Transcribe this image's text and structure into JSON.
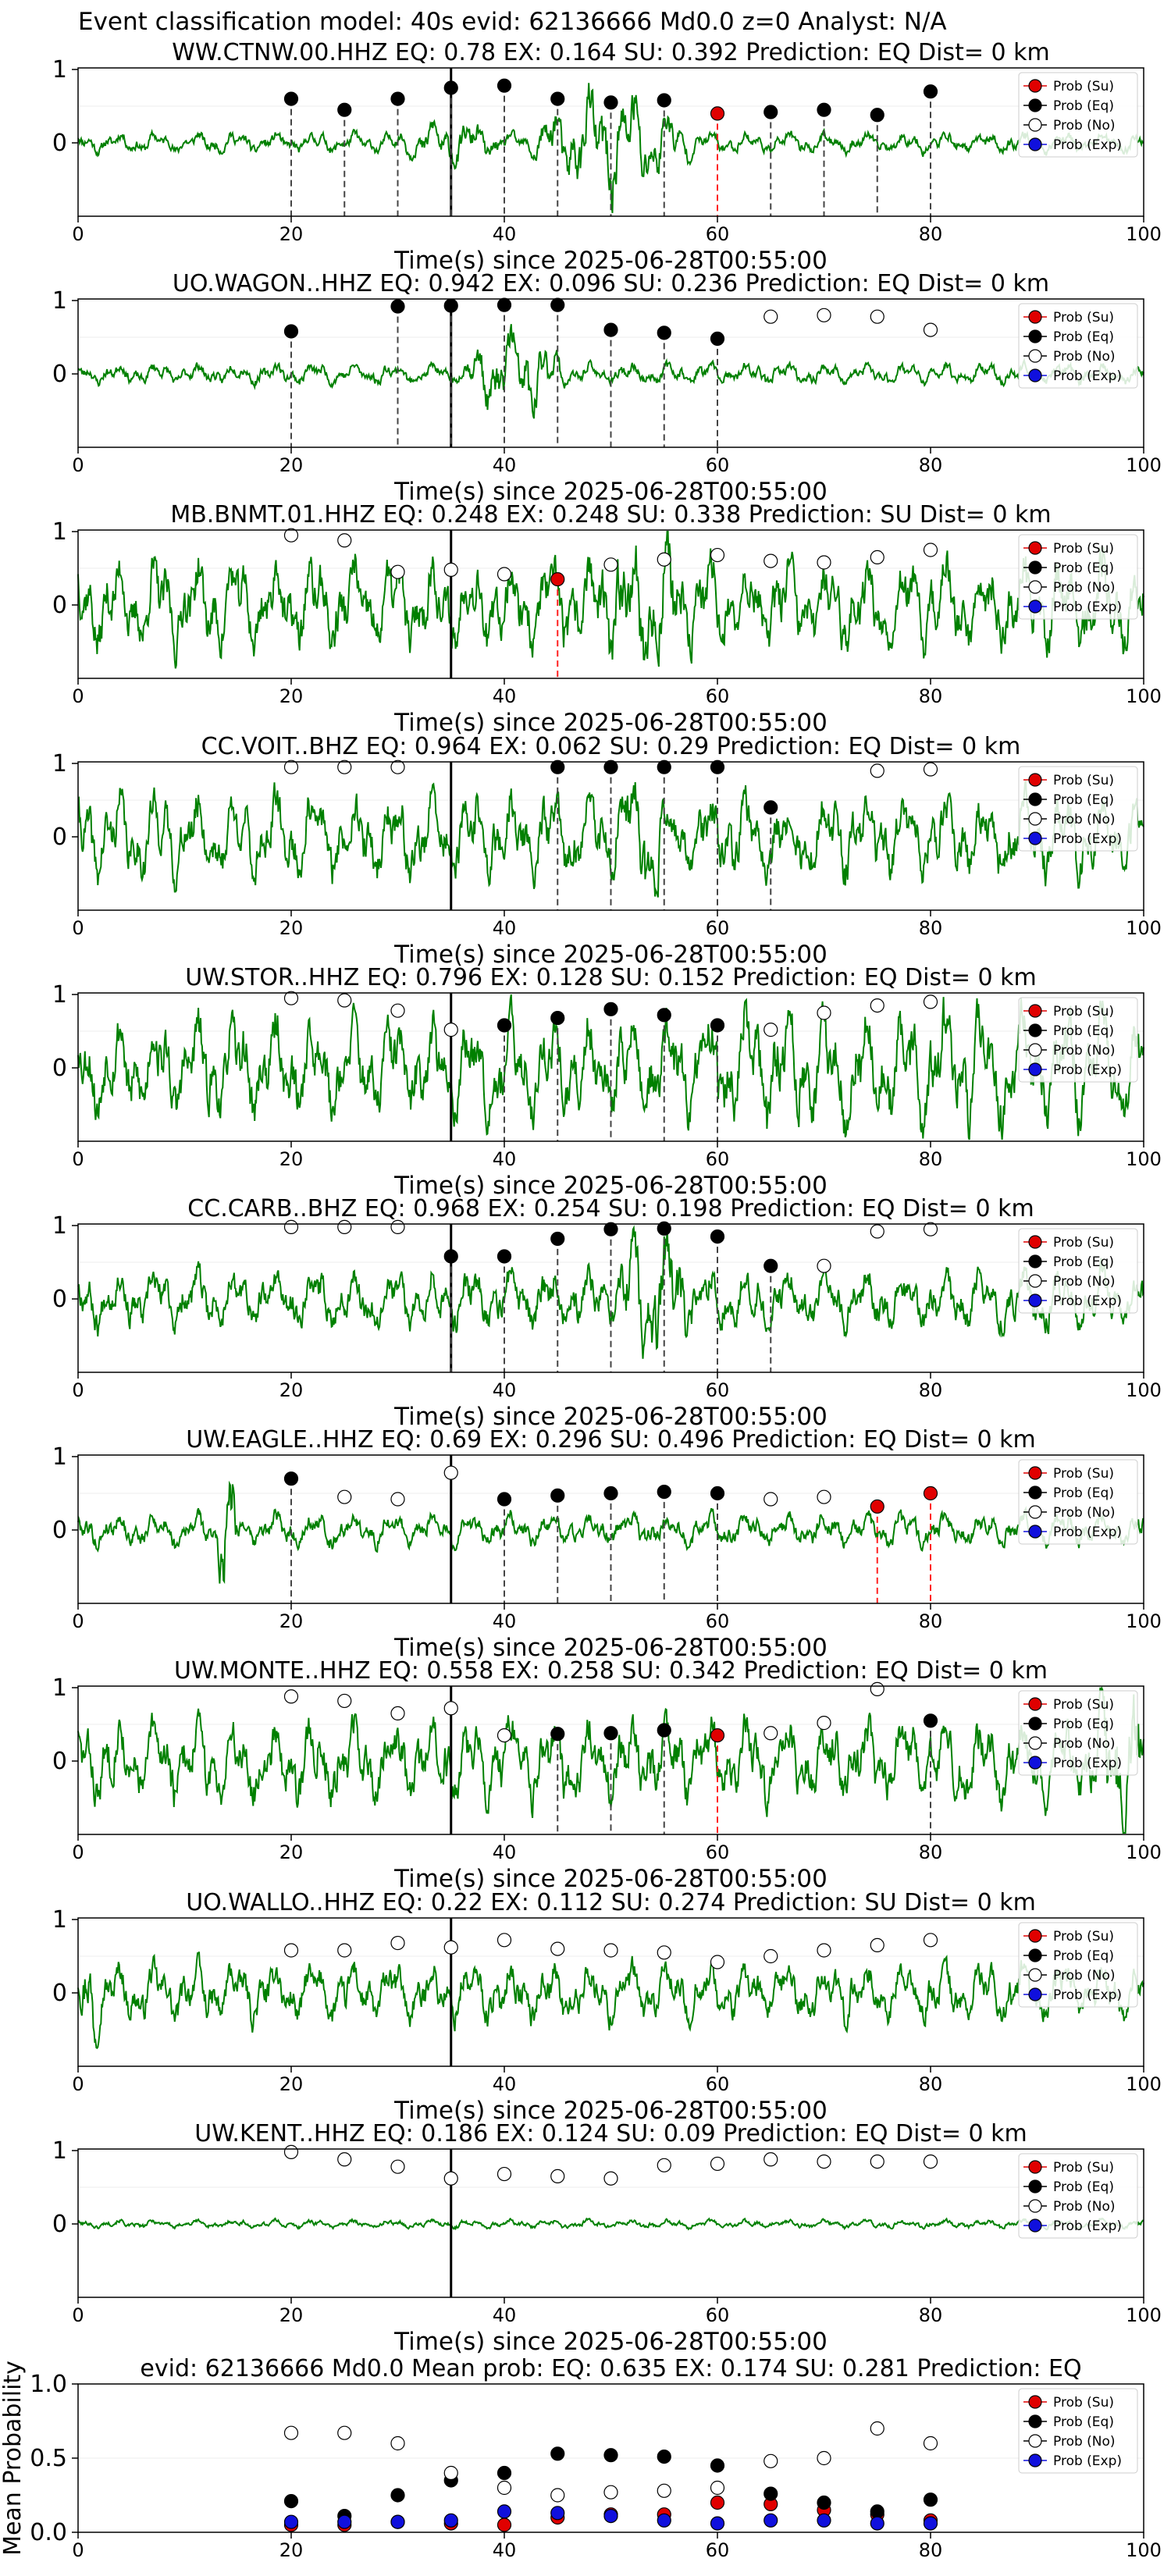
{
  "figure_title": "Event classification model: 40s evid: 62136666 Md0.0 z=0 Analyst: N/A",
  "legend_labels": [
    "Prob (Su)",
    "Prob (Eq)",
    "Prob (No)",
    "Prob (Exp)"
  ],
  "colors": {
    "su": "#e00000",
    "eq": "#000000",
    "no": "#ffffff",
    "exp": "#1010dd",
    "waveform": "#008000",
    "dashed": "#444444",
    "red_line": "#ff2020"
  },
  "xlabel": "Time(s) since 2025-06-28T00:55:00",
  "x_ticks": [
    "0",
    "20",
    "40",
    "60",
    "80",
    "100"
  ],
  "y_ticks_trace": [
    "1",
    "0"
  ],
  "y_ticks_mean": [
    "1.0",
    "0.5",
    "0.0"
  ],
  "chart_data": [
    {
      "type": "line",
      "title": "WW.CTNW.00.HHZ   EQ: 0.78  EX: 0.164  SU: 0.392   Prediction: EQ    Dist= 0 km",
      "xlim": [
        0,
        100
      ],
      "amp": 0.12,
      "seed": 11,
      "bursts": [
        [
          42,
          58,
          0.55
        ],
        [
          30,
          40,
          0.15
        ]
      ],
      "pick": 35,
      "points": [
        [
          20,
          "eq",
          0.6
        ],
        [
          25,
          "eq",
          0.45
        ],
        [
          30,
          "eq",
          0.6
        ],
        [
          35,
          "eq",
          0.75
        ],
        [
          40,
          "eq",
          0.78
        ],
        [
          45,
          "eq",
          0.6
        ],
        [
          50,
          "eq",
          0.55
        ],
        [
          55,
          "eq",
          0.58
        ],
        [
          60,
          "su",
          0.4
        ],
        [
          65,
          "eq",
          0.42
        ],
        [
          70,
          "eq",
          0.45
        ],
        [
          75,
          "eq",
          0.38
        ],
        [
          80,
          "eq",
          0.7
        ]
      ]
    },
    {
      "type": "line",
      "title": "UO.WAGON..HHZ   EQ: 0.942  EX: 0.096  SU: 0.236   Prediction: EQ    Dist= 0 km",
      "xlim": [
        0,
        100
      ],
      "amp": 0.12,
      "seed": 23,
      "bursts": [
        [
          36,
          46,
          0.45
        ]
      ],
      "pick": 35,
      "points": [
        [
          20,
          "eq",
          0.58
        ],
        [
          30,
          "eq",
          0.92
        ],
        [
          35,
          "eq",
          0.93
        ],
        [
          40,
          "eq",
          0.94
        ],
        [
          45,
          "eq",
          0.94
        ],
        [
          50,
          "eq",
          0.6
        ],
        [
          55,
          "eq",
          0.56
        ],
        [
          60,
          "eq",
          0.48
        ],
        [
          65,
          "no",
          0.78
        ],
        [
          70,
          "no",
          0.8
        ],
        [
          75,
          "no",
          0.78
        ],
        [
          80,
          "no",
          0.6
        ]
      ]
    },
    {
      "type": "line",
      "title": "MB.BNMT.01.HHZ   EQ: 0.248  EX: 0.248  SU: 0.338   Prediction: SU    Dist= 0 km",
      "xlim": [
        0,
        100
      ],
      "amp": 0.55,
      "seed": 37,
      "bursts": [
        [
          48,
          58,
          0.35
        ]
      ],
      "pick": 35,
      "points": [
        [
          20,
          "no",
          0.95
        ],
        [
          25,
          "no",
          0.88
        ],
        [
          30,
          "no",
          0.45
        ],
        [
          35,
          "no",
          0.48
        ],
        [
          40,
          "no",
          0.42
        ],
        [
          45,
          "su",
          0.35
        ],
        [
          50,
          "no",
          0.55
        ],
        [
          55,
          "no",
          0.62
        ],
        [
          60,
          "no",
          0.68
        ],
        [
          65,
          "no",
          0.6
        ],
        [
          70,
          "no",
          0.58
        ],
        [
          75,
          "no",
          0.65
        ],
        [
          80,
          "no",
          0.75
        ]
      ]
    },
    {
      "type": "line",
      "title": "CC.VOIT..BHZ   EQ: 0.964  EX: 0.062  SU: 0.29   Prediction: EQ    Dist= 0 km",
      "xlim": [
        0,
        100
      ],
      "amp": 0.5,
      "seed": 41,
      "bursts": [
        [
          50,
          56,
          0.3
        ]
      ],
      "pick": 35,
      "points": [
        [
          20,
          "no",
          0.95
        ],
        [
          25,
          "no",
          0.95
        ],
        [
          30,
          "no",
          0.95
        ],
        [
          45,
          "eq",
          0.95
        ],
        [
          50,
          "eq",
          0.95
        ],
        [
          55,
          "eq",
          0.95
        ],
        [
          60,
          "eq",
          0.95
        ],
        [
          65,
          "eq",
          0.4
        ],
        [
          75,
          "no",
          0.9
        ],
        [
          80,
          "no",
          0.92
        ]
      ]
    },
    {
      "type": "line",
      "title": "UW.STOR..HHZ   EQ: 0.796  EX: 0.128  SU: 0.152   Prediction: EQ    Dist= 0 km",
      "xlim": [
        0,
        100
      ],
      "amp": 0.6,
      "seed": 53,
      "bursts": [
        [
          50,
          100,
          0.15
        ]
      ],
      "pick": 35,
      "points": [
        [
          20,
          "no",
          0.95
        ],
        [
          25,
          "no",
          0.92
        ],
        [
          30,
          "no",
          0.78
        ],
        [
          35,
          "no",
          0.52
        ],
        [
          40,
          "eq",
          0.58
        ],
        [
          45,
          "eq",
          0.68
        ],
        [
          50,
          "eq",
          0.8
        ],
        [
          55,
          "eq",
          0.72
        ],
        [
          60,
          "eq",
          0.58
        ],
        [
          65,
          "no",
          0.52
        ],
        [
          70,
          "no",
          0.75
        ],
        [
          75,
          "no",
          0.85
        ],
        [
          80,
          "no",
          0.9
        ]
      ]
    },
    {
      "type": "line",
      "title": "CC.CARB..BHZ   EQ: 0.968  EX: 0.254  SU: 0.198   Prediction: EQ    Dist= 0 km",
      "xlim": [
        0,
        100
      ],
      "amp": 0.35,
      "seed": 67,
      "bursts": [
        [
          50,
          58,
          0.5
        ]
      ],
      "pick": 35,
      "points": [
        [
          20,
          "no",
          0.98
        ],
        [
          25,
          "no",
          0.98
        ],
        [
          30,
          "no",
          0.98
        ],
        [
          35,
          "eq",
          0.58
        ],
        [
          40,
          "eq",
          0.58
        ],
        [
          45,
          "eq",
          0.82
        ],
        [
          50,
          "eq",
          0.95
        ],
        [
          55,
          "eq",
          0.96
        ],
        [
          60,
          "eq",
          0.85
        ],
        [
          65,
          "eq",
          0.45
        ],
        [
          70,
          "no",
          0.45
        ],
        [
          75,
          "no",
          0.92
        ],
        [
          80,
          "no",
          0.95
        ]
      ]
    },
    {
      "type": "line",
      "title": "UW.EAGLE..HHZ   EQ: 0.69  EX: 0.296  SU: 0.496   Prediction: EQ    Dist= 0 km",
      "xlim": [
        0,
        100
      ],
      "amp": 0.2,
      "seed": 79,
      "bursts": [
        [
          13,
          15,
          0.8
        ]
      ],
      "pick": 35,
      "points": [
        [
          20,
          "eq",
          0.7
        ],
        [
          25,
          "no",
          0.45
        ],
        [
          30,
          "no",
          0.42
        ],
        [
          35,
          "no",
          0.78
        ],
        [
          40,
          "eq",
          0.42
        ],
        [
          45,
          "eq",
          0.47
        ],
        [
          50,
          "eq",
          0.5
        ],
        [
          55,
          "eq",
          0.52
        ],
        [
          60,
          "eq",
          0.5
        ],
        [
          65,
          "no",
          0.42
        ],
        [
          70,
          "no",
          0.45
        ],
        [
          75,
          "su",
          0.32
        ],
        [
          80,
          "su",
          0.5
        ]
      ]
    },
    {
      "type": "line",
      "title": "UW.MONTE..HHZ   EQ: 0.558  EX: 0.258  SU: 0.342   Prediction: EQ    Dist= 0 km",
      "xlim": [
        0,
        100
      ],
      "amp": 0.5,
      "seed": 83,
      "bursts": [
        [
          95,
          100,
          0.6
        ]
      ],
      "pick": 35,
      "points": [
        [
          20,
          "no",
          0.88
        ],
        [
          25,
          "no",
          0.82
        ],
        [
          30,
          "no",
          0.65
        ],
        [
          35,
          "no",
          0.72
        ],
        [
          40,
          "no",
          0.35
        ],
        [
          45,
          "eq",
          0.37
        ],
        [
          50,
          "eq",
          0.38
        ],
        [
          55,
          "eq",
          0.42
        ],
        [
          60,
          "su",
          0.35
        ],
        [
          65,
          "no",
          0.38
        ],
        [
          70,
          "no",
          0.52
        ],
        [
          75,
          "no",
          0.98
        ],
        [
          80,
          "eq",
          0.55
        ]
      ]
    },
    {
      "type": "line",
      "title": "UO.WALLO..HHZ   EQ: 0.22  EX: 0.112  SU: 0.274   Prediction: SU    Dist= 0 km",
      "xlim": [
        0,
        100
      ],
      "amp": 0.35,
      "seed": 97,
      "bursts": [
        [
          0,
          2,
          0.4
        ]
      ],
      "pick": 35,
      "points": [
        [
          20,
          "no",
          0.58
        ],
        [
          25,
          "no",
          0.58
        ],
        [
          30,
          "no",
          0.68
        ],
        [
          35,
          "no",
          0.62
        ],
        [
          40,
          "no",
          0.72
        ],
        [
          45,
          "no",
          0.6
        ],
        [
          50,
          "no",
          0.58
        ],
        [
          55,
          "no",
          0.55
        ],
        [
          60,
          "no",
          0.42
        ],
        [
          65,
          "no",
          0.5
        ],
        [
          70,
          "no",
          0.58
        ],
        [
          75,
          "no",
          0.65
        ],
        [
          80,
          "no",
          0.72
        ]
      ]
    },
    {
      "type": "line",
      "title": "UW.KENT..HHZ   EQ: 0.186  EX: 0.124  SU: 0.09   Prediction: EQ    Dist= 0 km",
      "xlim": [
        0,
        100
      ],
      "amp": 0.05,
      "seed": 101,
      "bursts": [],
      "pick": 35,
      "points": [
        [
          20,
          "no",
          0.98
        ],
        [
          25,
          "no",
          0.88
        ],
        [
          30,
          "no",
          0.78
        ],
        [
          35,
          "no",
          0.62
        ],
        [
          40,
          "no",
          0.68
        ],
        [
          45,
          "no",
          0.65
        ],
        [
          50,
          "no",
          0.62
        ],
        [
          55,
          "no",
          0.8
        ],
        [
          60,
          "no",
          0.82
        ],
        [
          65,
          "no",
          0.88
        ],
        [
          70,
          "no",
          0.85
        ],
        [
          75,
          "no",
          0.85
        ],
        [
          80,
          "no",
          0.85
        ]
      ]
    },
    {
      "type": "scatter",
      "title": "evid: 62136666  Md0.0   Mean prob:   EQ: 0.635  EX: 0.174  SU: 0.281   Prediction: EQ",
      "ylabel": "Mean Probability",
      "xlim": [
        0,
        100
      ],
      "ylim": [
        0,
        1
      ],
      "x": [
        20,
        25,
        30,
        35,
        40,
        45,
        50,
        55,
        60,
        65,
        70,
        75,
        80
      ],
      "series": [
        {
          "name": "Prob (Su)",
          "key": "su",
          "values": [
            0.05,
            0.05,
            0.07,
            0.06,
            0.05,
            0.1,
            0.12,
            0.12,
            0.2,
            0.19,
            0.15,
            0.12,
            0.08
          ]
        },
        {
          "name": "Prob (Eq)",
          "key": "eq",
          "values": [
            0.21,
            0.11,
            0.25,
            0.35,
            0.4,
            0.53,
            0.52,
            0.51,
            0.45,
            0.26,
            0.2,
            0.14,
            0.22
          ]
        },
        {
          "name": "Prob (No)",
          "key": "no",
          "values": [
            0.67,
            0.67,
            0.6,
            0.4,
            0.3,
            0.25,
            0.27,
            0.28,
            0.3,
            0.48,
            0.5,
            0.7,
            0.6
          ]
        },
        {
          "name": "Prob (Exp)",
          "key": "exp",
          "values": [
            0.07,
            0.07,
            0.07,
            0.08,
            0.14,
            0.13,
            0.11,
            0.08,
            0.06,
            0.08,
            0.08,
            0.06,
            0.06
          ]
        }
      ]
    }
  ]
}
